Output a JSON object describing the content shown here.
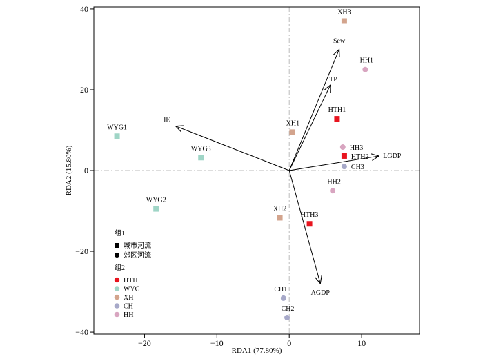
{
  "chart_data": {
    "type": "scatter",
    "subtype": "rda-biplot",
    "xlabel": "RDA1 (77.80%)",
    "ylabel": "RDA2 (15.80%)",
    "xlim": [
      -27,
      18
    ],
    "ylim": [
      -40.5,
      40.5
    ],
    "xticks": [
      -20,
      -10,
      0,
      10
    ],
    "yticks": [
      -40,
      -20,
      0,
      20,
      40
    ],
    "zero_lines": true,
    "colors": {
      "HTH": "#e8141e",
      "WYG": "#9fd5c6",
      "XH": "#d3a48d",
      "CH": "#a7a9c9",
      "HH": "#d8a5c0"
    },
    "samples": [
      {
        "label": "XH3",
        "group": "XH",
        "shape": "square",
        "x": 7.6,
        "y": 37.0
      },
      {
        "label": "HH1",
        "group": "HH",
        "shape": "circle",
        "x": 10.5,
        "y": 25.0
      },
      {
        "label": "HTH1",
        "group": "HTH",
        "shape": "square",
        "x": 6.6,
        "y": 12.8
      },
      {
        "label": "XH1",
        "group": "XH",
        "shape": "square",
        "x": 0.4,
        "y": 9.5
      },
      {
        "label": "WYG1",
        "group": "WYG",
        "shape": "square",
        "x": -23.8,
        "y": 8.5
      },
      {
        "label": "WYG3",
        "group": "WYG",
        "shape": "square",
        "x": -12.2,
        "y": 3.2
      },
      {
        "label": "HH3",
        "group": "HH",
        "shape": "circle",
        "x": 7.4,
        "y": 5.8
      },
      {
        "label": "HTH2",
        "group": "HTH",
        "shape": "square",
        "x": 7.6,
        "y": 3.6
      },
      {
        "label": "CH3",
        "group": "CH",
        "shape": "circle",
        "x": 7.6,
        "y": 1.0
      },
      {
        "label": "HH2",
        "group": "HH",
        "shape": "circle",
        "x": 6.0,
        "y": -5.0
      },
      {
        "label": "WYG2",
        "group": "WYG",
        "shape": "square",
        "x": -18.4,
        "y": -9.5
      },
      {
        "label": "XH2",
        "group": "XH",
        "shape": "square",
        "x": -1.3,
        "y": -11.7
      },
      {
        "label": "HTH3",
        "group": "HTH",
        "shape": "square",
        "x": 2.8,
        "y": -13.2
      },
      {
        "label": "CH1",
        "group": "CH",
        "shape": "circle",
        "x": -0.8,
        "y": -31.6
      },
      {
        "label": "CH2",
        "group": "CH",
        "shape": "circle",
        "x": -0.3,
        "y": -36.4
      }
    ],
    "vectors": [
      {
        "label": "Sew",
        "x": 6.9,
        "y": 30.0
      },
      {
        "label": "TP",
        "x": 5.7,
        "y": 21.2
      },
      {
        "label": "IE",
        "x": -15.7,
        "y": 11.0
      },
      {
        "label": "LGDP",
        "x": 12.4,
        "y": 3.6
      },
      {
        "label": "AGDP",
        "x": 4.3,
        "y": -28.0
      }
    ],
    "legend": {
      "placement": "bottom-left",
      "group1_title": "组1",
      "group1_items": [
        {
          "label": "城市河流",
          "shape": "square"
        },
        {
          "label": "郊区河流",
          "shape": "circle"
        }
      ],
      "group2_title": "组2",
      "group2_items": [
        {
          "label": "HTH",
          "group": "HTH"
        },
        {
          "label": "WYG",
          "group": "WYG"
        },
        {
          "label": "XH",
          "group": "XH"
        },
        {
          "label": "CH",
          "group": "CH"
        },
        {
          "label": "HH",
          "group": "HH"
        }
      ]
    }
  }
}
